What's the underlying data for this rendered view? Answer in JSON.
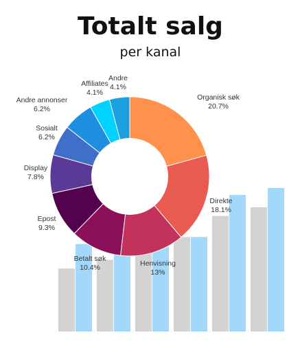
{
  "chart_data": {
    "type": "donut",
    "title": "Totalt salg",
    "subtitle": "per kanal",
    "unit": "%",
    "slices": [
      {
        "label": "Organisk søk",
        "value": 20.7,
        "display": "20.7%",
        "color": "#ff914d"
      },
      {
        "label": "Direkte",
        "value": 18.1,
        "display": "18.1%",
        "color": "#e95b51"
      },
      {
        "label": "Henvisning",
        "value": 13.0,
        "display": "13%",
        "color": "#c2325c"
      },
      {
        "label": "Betalt søk",
        "value": 10.4,
        "display": "10.4%",
        "color": "#8c0f5a"
      },
      {
        "label": "Epost",
        "value": 9.3,
        "display": "9.3%",
        "color": "#54014e"
      },
      {
        "label": "Display",
        "value": 7.8,
        "display": "7.8%",
        "color": "#5b3a97"
      },
      {
        "label": "Sosialt",
        "value": 6.2,
        "display": "6.2%",
        "color": "#3f6fc9"
      },
      {
        "label": "Andre annonser",
        "value": 6.2,
        "display": "6.2%",
        "color": "#1e8fe0"
      },
      {
        "label": "Affiliates",
        "value": 4.1,
        "display": "4.1%",
        "color": "#00d2ff"
      },
      {
        "label": "Andre",
        "value": 4.1,
        "display": "4.1%",
        "color": "#1aa0e0"
      }
    ],
    "background_bars": {
      "type": "bar",
      "series": [
        {
          "values": [
            0.36,
            0.41,
            0.46,
            0.54,
            0.66,
            0.71
          ],
          "color": "#d3d3d3"
        },
        {
          "values": [
            0.5,
            0.55,
            0.54,
            0.54,
            0.78,
            0.82
          ],
          "color": "#a2d9fb"
        }
      ]
    }
  }
}
